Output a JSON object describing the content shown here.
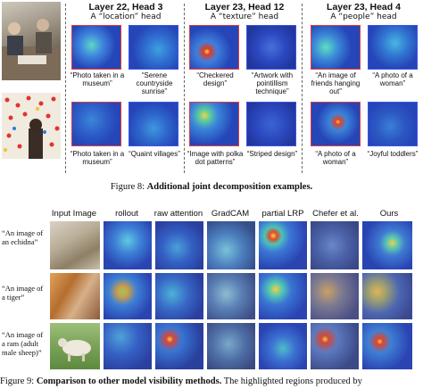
{
  "fig8": {
    "caption_label": "Figure 8:",
    "caption_text": "Additional joint decomposition examples.",
    "heads": [
      {
        "title": "Layer 22, Head 3",
        "subtitle": "A “location” head"
      },
      {
        "title": "Layer 23, Head 12",
        "subtitle": "A “texture” head"
      },
      {
        "title": "Layer 23, Head 4",
        "subtitle": "A “people” head"
      }
    ],
    "row1_captions": [
      "“Photo taken in a museum”",
      "“Serene countryside sunrise”",
      "“Checkered design”",
      "“Artwork with pointillism technique”",
      "“An image of friends hanging out”",
      "“A photo of a woman”"
    ],
    "row2_captions": [
      "“Photo taken in a museum”",
      "“Quaint villages”",
      "“Image with polka dot patterns”",
      "“Striped design”",
      "“A photo of a woman”",
      "“Joyful toddlers”"
    ]
  },
  "fig9": {
    "columns": [
      "Input Image",
      "rollout",
      "raw attention",
      "GradCAM",
      "partial LRP",
      "Chefer et al.",
      "Ours"
    ],
    "rows": [
      {
        "label": "“An image of an echidna”"
      },
      {
        "label": "“An image of a tiger”"
      },
      {
        "label": "“An image of a ram (adult male sheep)”"
      }
    ],
    "caption_label": "Figure 9:",
    "caption_text": "Comparison to other model visibility methods.",
    "caption_tail": "The highlighted regions produced by"
  },
  "colors": {
    "heat_base": "#2545b8",
    "red_border": "#e23a3a",
    "blue_border": "#3a55e2"
  }
}
